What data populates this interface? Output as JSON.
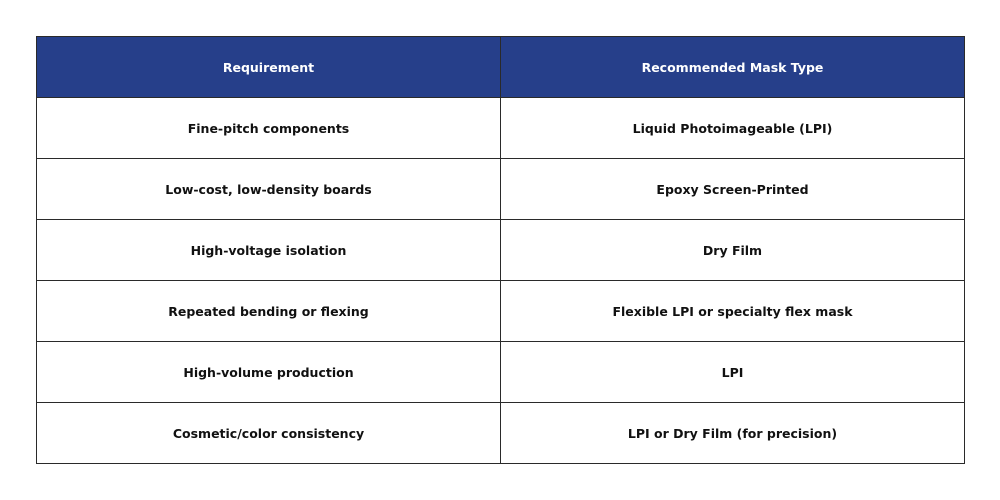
{
  "table": {
    "header_color": "#263f8a",
    "headers": [
      "Requirement",
      "Recommended Mask Type"
    ],
    "rows": [
      [
        "Fine-pitch components",
        "Liquid Photoimageable (LPI)"
      ],
      [
        "Low-cost, low-density boards",
        "Epoxy Screen-Printed"
      ],
      [
        "High-voltage isolation",
        "Dry Film"
      ],
      [
        "Repeated bending or flexing",
        "Flexible LPI or specialty flex mask"
      ],
      [
        "High-volume production",
        "LPI"
      ],
      [
        "Cosmetic/color consistency",
        "LPI or Dry Film (for precision)"
      ]
    ]
  }
}
